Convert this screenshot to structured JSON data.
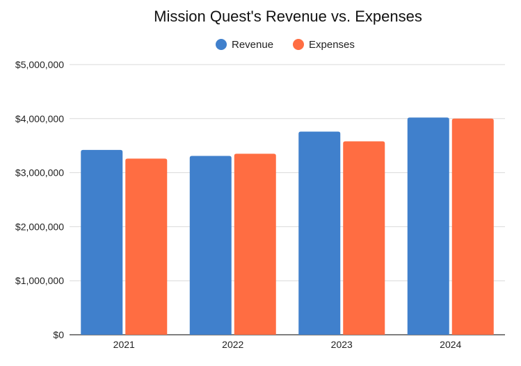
{
  "chart_data": {
    "type": "bar",
    "title": "Mission Quest's Revenue vs. Expenses",
    "xlabel": "",
    "ylabel": "",
    "categories": [
      "2021",
      "2022",
      "2023",
      "2024"
    ],
    "series": [
      {
        "name": "Revenue",
        "color": "#4080CC",
        "values": [
          3420000,
          3310000,
          3760000,
          4020000
        ]
      },
      {
        "name": "Expenses",
        "color": "#FF6D42",
        "values": [
          3260000,
          3350000,
          3580000,
          4000000
        ]
      }
    ],
    "ylim": [
      0,
      5000000
    ],
    "yticks": [
      0,
      1000000,
      2000000,
      3000000,
      4000000,
      5000000
    ],
    "ytick_labels": [
      "$0",
      "$1,000,000",
      "$2,000,000",
      "$3,000,000",
      "$4,000,000",
      "$5,000,000"
    ],
    "grid": true,
    "legend_position": "top-center"
  }
}
